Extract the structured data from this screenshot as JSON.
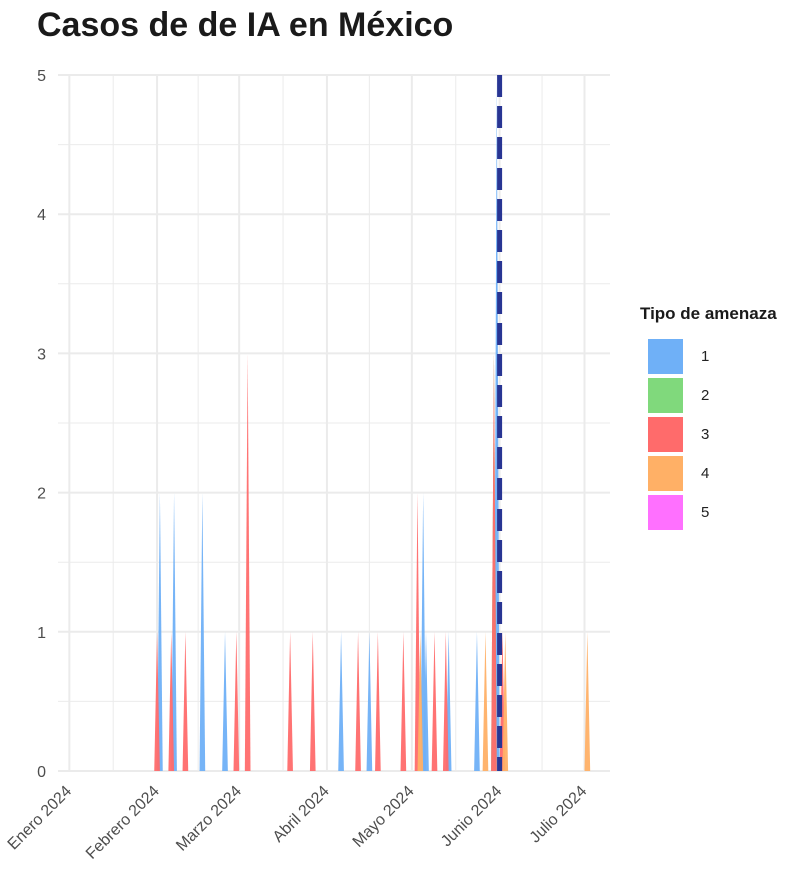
{
  "chart_data": {
    "type": "area",
    "title": "Casos de de IA en México",
    "xlabel": "",
    "ylabel": "",
    "ylim": [
      0,
      5
    ],
    "yticks": [
      "0",
      "1",
      "2",
      "3",
      "4",
      "5"
    ],
    "xticks": [
      {
        "label": "Enero 2024",
        "date": "2024-01-01"
      },
      {
        "label": "Febrero 2024",
        "date": "2024-02-01"
      },
      {
        "label": "Marzo 2024",
        "date": "2024-03-01"
      },
      {
        "label": "Abril 2024",
        "date": "2024-04-01"
      },
      {
        "label": "Mayo 2024",
        "date": "2024-05-01"
      },
      {
        "label": "Junio 2024",
        "date": "2024-06-01"
      },
      {
        "label": "Julio 2024",
        "date": "2024-07-01"
      }
    ],
    "xlim": [
      "2023-12-28",
      "2024-07-10"
    ],
    "reference_line": {
      "date": "2024-06-01",
      "color": "#283593",
      "style": "dashed"
    },
    "legend": {
      "title": "Tipo de amenaza",
      "position": "right"
    },
    "grid": true,
    "series": [
      {
        "name": "1",
        "color": "#6fb0f7",
        "points": [
          {
            "date": "2024-02-02",
            "value": 2
          },
          {
            "date": "2024-02-07",
            "value": 2
          },
          {
            "date": "2024-02-17",
            "value": 2
          },
          {
            "date": "2024-02-25",
            "value": 1
          },
          {
            "date": "2024-04-06",
            "value": 1
          },
          {
            "date": "2024-04-16",
            "value": 1
          },
          {
            "date": "2024-05-05",
            "value": 2
          },
          {
            "date": "2024-05-06",
            "value": 1
          },
          {
            "date": "2024-05-14",
            "value": 1
          },
          {
            "date": "2024-05-24",
            "value": 1
          },
          {
            "date": "2024-05-31",
            "value": 5
          }
        ]
      },
      {
        "name": "2",
        "color": "#80d97c",
        "points": [
          {
            "date": "2024-05-30",
            "value": 3
          }
        ]
      },
      {
        "name": "3",
        "color": "#ff6b6b",
        "points": [
          {
            "date": "2024-02-01",
            "value": 1
          },
          {
            "date": "2024-02-06",
            "value": 1
          },
          {
            "date": "2024-02-11",
            "value": 1
          },
          {
            "date": "2024-02-29",
            "value": 1
          },
          {
            "date": "2024-03-04",
            "value": 3
          },
          {
            "date": "2024-03-19",
            "value": 1
          },
          {
            "date": "2024-03-27",
            "value": 1
          },
          {
            "date": "2024-04-12",
            "value": 1
          },
          {
            "date": "2024-04-19",
            "value": 1
          },
          {
            "date": "2024-04-28",
            "value": 1
          },
          {
            "date": "2024-05-03",
            "value": 2
          },
          {
            "date": "2024-05-09",
            "value": 1
          },
          {
            "date": "2024-05-13",
            "value": 1
          },
          {
            "date": "2024-05-30",
            "value": 3
          },
          {
            "date": "2024-06-02",
            "value": 1
          }
        ]
      },
      {
        "name": "4",
        "color": "#ffb066",
        "points": [
          {
            "date": "2024-05-04",
            "value": 1
          },
          {
            "date": "2024-05-27",
            "value": 1
          },
          {
            "date": "2024-06-03",
            "value": 1
          },
          {
            "date": "2024-07-02",
            "value": 1
          }
        ]
      },
      {
        "name": "5",
        "color": "#ff70ff",
        "points": []
      }
    ]
  }
}
